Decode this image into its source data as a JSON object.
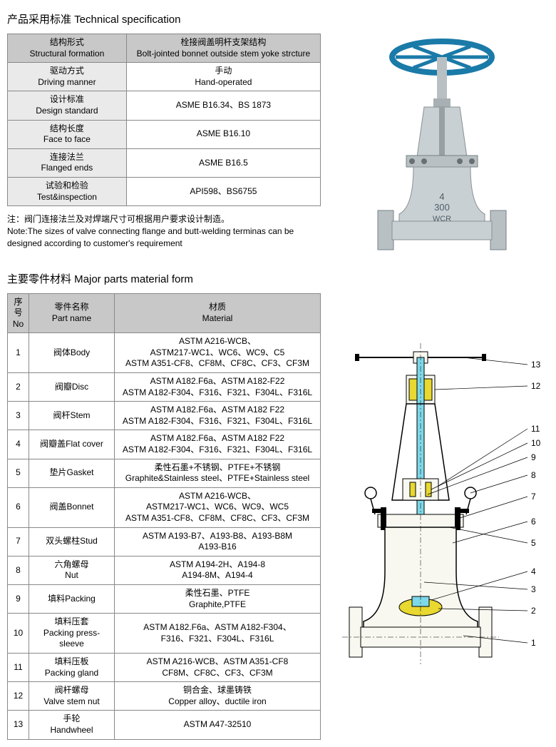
{
  "spec": {
    "title": "产品采用标准 Technical specification",
    "header": [
      "结构形式\nStructural formation",
      "栓接阀盖明杆支架结构\nBolt-jointed bonnet outside stem yoke strcture"
    ],
    "rows": [
      [
        "驱动方式\nDriving manner",
        "手动\nHand-operated"
      ],
      [
        "设计标准\nDesign standard",
        "ASME B16.34、BS 1873"
      ],
      [
        "结构长度\nFace to face",
        "ASME B16.10"
      ],
      [
        "连接法兰\nFlanged ends",
        "ASME B16.5"
      ],
      [
        "试验和检验\nTest&inspection",
        "API598、BS6755"
      ]
    ]
  },
  "note": "注：阀门连接法兰及对焊端尺寸可根据用户要求设计制造。\nNote:The sizes of valve connecting flange and butt-welding terminas can be designed according to customer's requirement",
  "parts": {
    "title": "主要零件材料 Major parts material form",
    "header": [
      "序号\nNo",
      "零件名称\nPart name",
      "材质\nMaterial"
    ],
    "rows": [
      [
        "1",
        "阀体Body",
        "ASTM A216-WCB、\nASTM217-WC1、WC6、WC9、C5\nASTM A351-CF8、CF8M、CF8C、CF3、CF3M"
      ],
      [
        "2",
        "阀瓣Disc",
        "ASTM A182.F6a、ASTM A182-F22\nASTM A182-F304、F316、F321、F304L、F316L"
      ],
      [
        "3",
        "阀杆Stem",
        "ASTM A182.F6a、ASTM A182 F22\nASTM A182-F304、F316、F321、F304L、F316L"
      ],
      [
        "4",
        "阀瓣盖Flat cover",
        "ASTM A182.F6a、ASTM A182 F22\nASTM A182-F304、F316、F321、F304L、F316L"
      ],
      [
        "5",
        "垫片Gasket",
        "柔性石墨+不锈钢、PTFE+不锈钢\nGraphite&Stainless steel、PTFE+Stainless steel"
      ],
      [
        "6",
        "阀盖Bonnet",
        "ASTM A216-WCB、\nASTM217-WC1、WC6、WC9、WC5\nASTM A351-CF8、CF8M、CF8C、CF3、CF3M"
      ],
      [
        "7",
        "双头螺柱Stud",
        "ASTM A193-B7、A193-B8、A193-B8M\nA193-B16"
      ],
      [
        "8",
        "六角螺母\nNut",
        "ASTM A194-2H、A194-8\nA194-8M、A194-4"
      ],
      [
        "9",
        "填料Packing",
        "柔性石墨、PTFE\nGraphite,PTFE"
      ],
      [
        "10",
        "填料压套\nPacking press-sleeve",
        "ASTM A182.F6a、ASTM A182-F304、\nF316、F321、F304L、F316L"
      ],
      [
        "11",
        "填料压板\nPacking gland",
        "ASTM A216-WCB、ASTM A351-CF8\nCF8M、CF8C、CF3、CF3M"
      ],
      [
        "12",
        "阀杆螺母\nValve stem nut",
        "铜合金、球墨铸铁\nCopper alloy、ductile iron"
      ],
      [
        "13",
        "手轮\nHandwheel",
        "ASTM A47-32510"
      ]
    ]
  },
  "valve_photo": {
    "wheel_color": "#1a7aa8",
    "body_color": "#c8d0d4",
    "markings": [
      "4",
      "300",
      "WCR"
    ]
  },
  "diagram": {
    "callouts": [
      "13",
      "12",
      "11",
      "10",
      "9",
      "8",
      "7",
      "6",
      "5",
      "4",
      "3",
      "2",
      "1"
    ],
    "stem_color": "#7dd8e8",
    "body_color": "#f8f8f0",
    "accent_color": "#e8d830"
  }
}
